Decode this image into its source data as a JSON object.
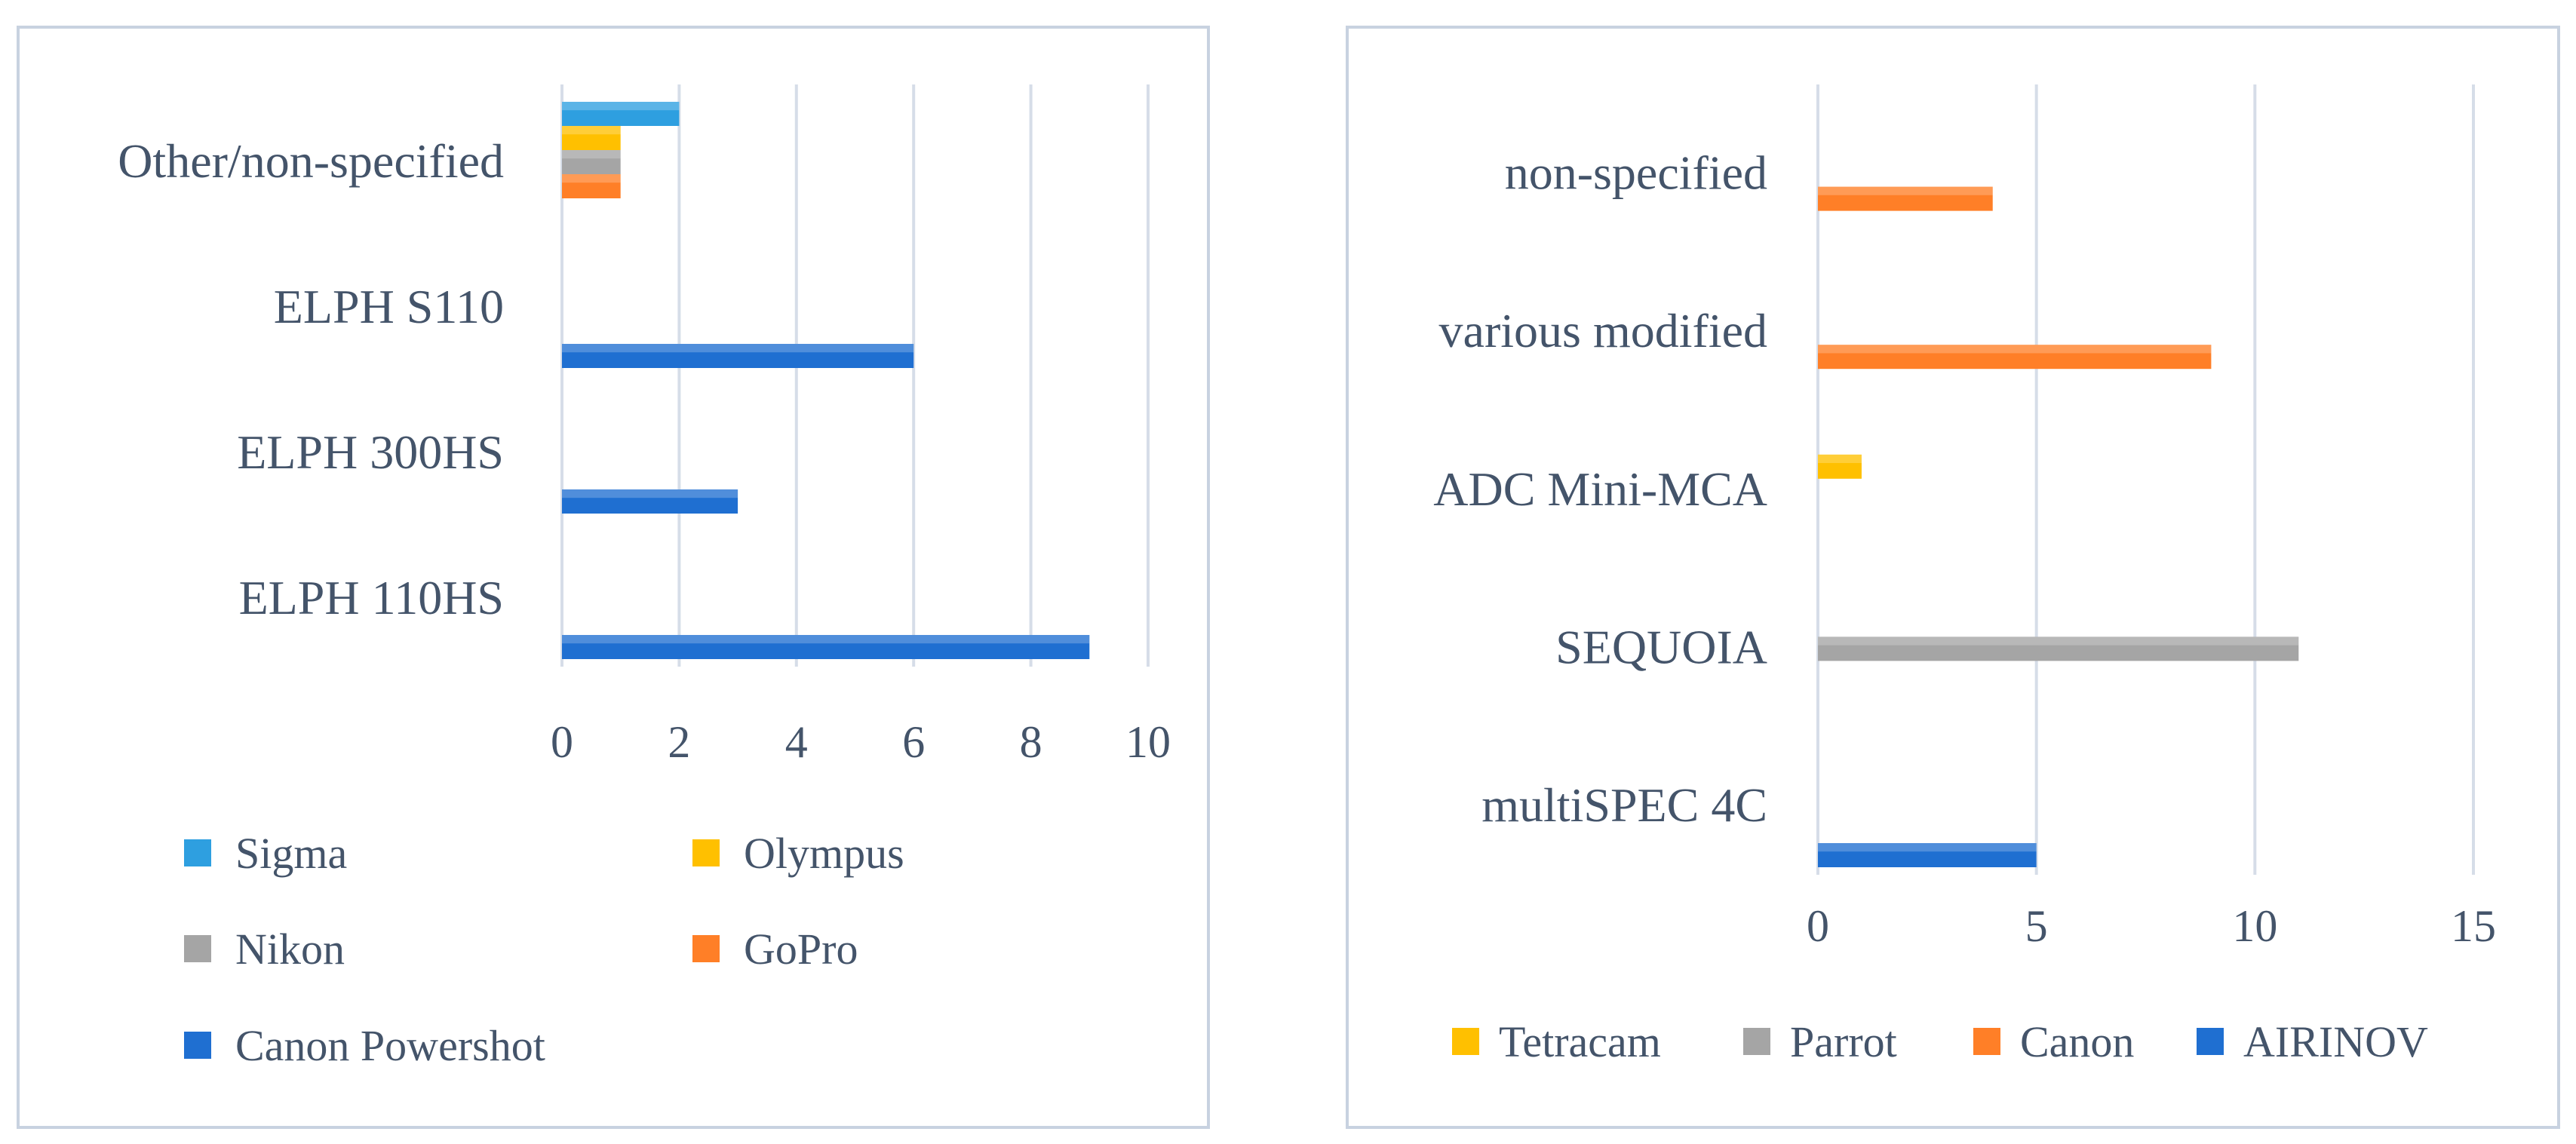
{
  "chart_data": [
    {
      "type": "bar",
      "orientation": "horizontal",
      "title": "",
      "xlabel": "",
      "ylabel": "",
      "categories": [
        "Other/non-specified",
        "ELPH S110",
        "ELPH 300HS",
        "ELPH 110HS"
      ],
      "series": [
        {
          "name": "Sigma",
          "color": "#2e9fe0",
          "values": [
            2,
            0,
            0,
            0
          ]
        },
        {
          "name": "Olympus",
          "color": "#ffc000",
          "values": [
            1,
            0,
            0,
            0
          ]
        },
        {
          "name": "Nikon",
          "color": "#a5a5a5",
          "values": [
            1,
            0,
            0,
            0
          ]
        },
        {
          "name": "GoPro",
          "color": "#ff7f27",
          "values": [
            1,
            0,
            0,
            0
          ]
        },
        {
          "name": "Canon Powershot",
          "color": "#1f6fd1",
          "values": [
            0,
            6,
            3,
            9
          ]
        }
      ],
      "xlim": [
        0,
        10
      ],
      "xticks": [
        0,
        2,
        4,
        6,
        8,
        10
      ],
      "grid": true,
      "legend": [
        [
          "Sigma",
          "Olympus"
        ],
        [
          "Nikon",
          "GoPro"
        ],
        [
          "Canon Powershot"
        ]
      ],
      "legend_position": "bottom"
    },
    {
      "type": "bar",
      "orientation": "horizontal",
      "title": "",
      "xlabel": "",
      "ylabel": "",
      "categories": [
        "non-specified",
        "various modified",
        "ADC Mini-MCA",
        "SEQUOIA",
        "multiSPEC 4C"
      ],
      "series": [
        {
          "name": "Tetracam",
          "color": "#ffc000",
          "values": [
            0,
            0,
            1,
            0,
            0
          ]
        },
        {
          "name": "Parrot",
          "color": "#a5a5a5",
          "values": [
            0,
            0,
            0,
            11,
            0
          ]
        },
        {
          "name": "Canon",
          "color": "#ff7f27",
          "values": [
            4,
            9,
            0,
            0,
            0
          ]
        },
        {
          "name": "AIRINOV",
          "color": "#1f6fd1",
          "values": [
            0,
            0,
            0,
            0,
            5
          ]
        }
      ],
      "xlim": [
        0,
        15
      ],
      "xticks": [
        0,
        5,
        10,
        15
      ],
      "grid": true,
      "legend": [
        [
          "Tetracam",
          "Parrot",
          "Canon",
          "AIRINOV"
        ]
      ],
      "legend_position": "bottom"
    }
  ]
}
